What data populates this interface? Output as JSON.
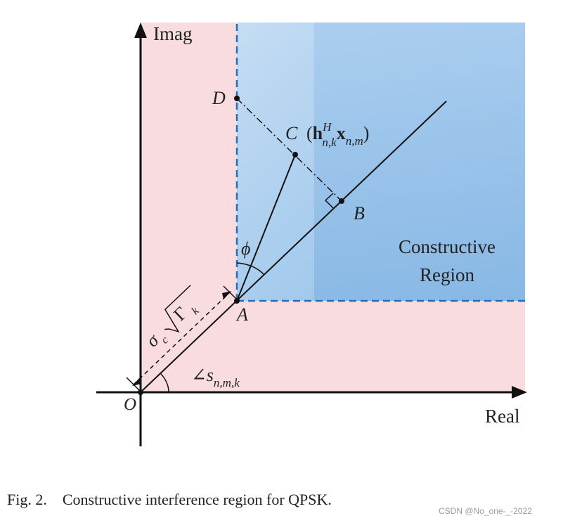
{
  "axes": {
    "imag_label": "Imag",
    "real_label": "Real",
    "origin_label": "O"
  },
  "points": {
    "a": "A",
    "b": "B",
    "c": "C",
    "d": "D"
  },
  "labels": {
    "c_expr_open": "(",
    "c_expr_h": "h",
    "c_expr_h_sup": "H",
    "c_expr_h_sub": "n,k",
    "c_expr_x": "x",
    "c_expr_x_sub": "n,m",
    "c_expr_close": ")",
    "phi": "ϕ",
    "angle_symbol": "∠",
    "angle_s": "s",
    "angle_sub": "n,m,k",
    "sigma": "σ",
    "sigma_sub": "c",
    "gamma": "Γ",
    "gamma_sub": "k"
  },
  "region": {
    "line1": "Constructive",
    "line2": "Region"
  },
  "caption": {
    "number": "Fig. 2.",
    "text": "Constructive interference region for QPSK."
  },
  "watermark": "CSDN @No_one-_-2022",
  "colors": {
    "pink_region": "#f8dcdf",
    "blue_region": "#9cc5ea",
    "blue_dash": "#2a6db5"
  }
}
